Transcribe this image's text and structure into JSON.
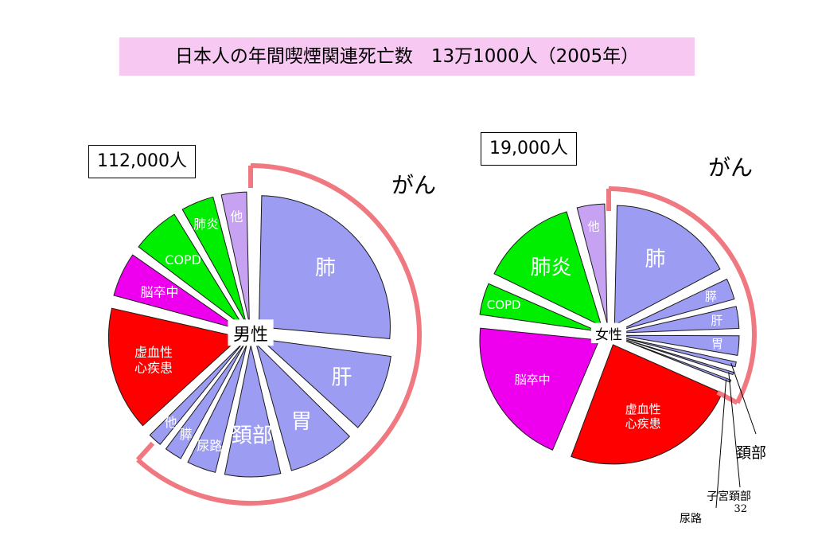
{
  "title": "日本人の年間喫煙関連死亡数　13万1000人（2005年）",
  "page_number": "32",
  "chart_data": [
    {
      "type": "pie",
      "total_label": "112,000人",
      "center_label": "男性",
      "group_label": "がん",
      "slices": [
        {
          "label": "肺",
          "value": 28.5,
          "color": "#9c9cf2",
          "text_color": "#ffffff"
        },
        {
          "label": "肝",
          "value": 11.0,
          "color": "#9c9cf2",
          "text_color": "#ffffff"
        },
        {
          "label": "胃",
          "value": 9.5,
          "color": "#9c9cf2",
          "text_color": "#ffffff"
        },
        {
          "label": "頚部",
          "value": 8.0,
          "color": "#9c9cf2",
          "text_color": "#ffffff"
        },
        {
          "label": "尿路",
          "value": 4.5,
          "color": "#9c9cf2",
          "text_color": "#ffffff"
        },
        {
          "label": "膵",
          "value": 3.0,
          "color": "#9c9cf2",
          "text_color": "#ffffff"
        },
        {
          "label": "他",
          "value": 2.5,
          "color": "#9c9cf2",
          "text_color": "#ffffff"
        },
        {
          "label": "虚血性\n心疾患",
          "value": 17.0,
          "color": "#ff0000",
          "text_color": "#ffffff"
        },
        {
          "label": "脳卒中",
          "value": 6.5,
          "color": "#ee00ee",
          "text_color": "#ffffff"
        },
        {
          "label": "COPD",
          "value": 7.0,
          "color": "#00ee00",
          "text_color": "#ffffff"
        },
        {
          "label": "肺炎",
          "value": 5.0,
          "color": "#00ee00",
          "text_color": "#ffffff"
        },
        {
          "label": "他",
          "value": 4.0,
          "color": "#c8a2f2",
          "text_color": "#ffffff"
        }
      ]
    },
    {
      "type": "pie",
      "total_label": "19,000人",
      "center_label": "女性",
      "group_label": "がん",
      "slices": [
        {
          "label": "肺",
          "value": 16.0,
          "color": "#9c9cf2",
          "text_color": "#ffffff"
        },
        {
          "label": "膵",
          "value": 3.2,
          "color": "#9c9cf2",
          "text_color": "#ffffff"
        },
        {
          "label": "肝",
          "value": 3.3,
          "color": "#9c9cf2",
          "text_color": "#ffffff"
        },
        {
          "label": "胃",
          "value": 3.0,
          "color": "#9c9cf2",
          "text_color": "#ffffff"
        },
        {
          "label": "",
          "value": 1.2,
          "color": "#9c9cf2",
          "text_color": "#ffffff",
          "callout": "頚部"
        },
        {
          "label": "",
          "value": 0.9,
          "color": "#9c9cf2",
          "text_color": "#ffffff",
          "callout": "子宮頚部"
        },
        {
          "label": "",
          "value": 0.9,
          "color": "#9c9cf2",
          "text_color": "#ffffff",
          "callout": "尿路"
        },
        {
          "label": "虚血性\n心疾患",
          "value": 22.5,
          "color": "#ff0000",
          "text_color": "#ffffff"
        },
        {
          "label": "脳卒中",
          "value": 19.0,
          "color": "#ee00ee",
          "text_color": "#ffffff"
        },
        {
          "label": "COPD",
          "value": 4.5,
          "color": "#00ee00",
          "text_color": "#ffffff"
        },
        {
          "label": "肺炎",
          "value": 12.5,
          "color": "#00ee00",
          "text_color": "#ffffff"
        },
        {
          "label": "他",
          "value": 4.0,
          "color": "#c8a2f2",
          "text_color": "#ffffff"
        }
      ]
    }
  ],
  "colors": {
    "cancer_bracket": "#f07880",
    "title_bg": "#f6c8f2"
  }
}
